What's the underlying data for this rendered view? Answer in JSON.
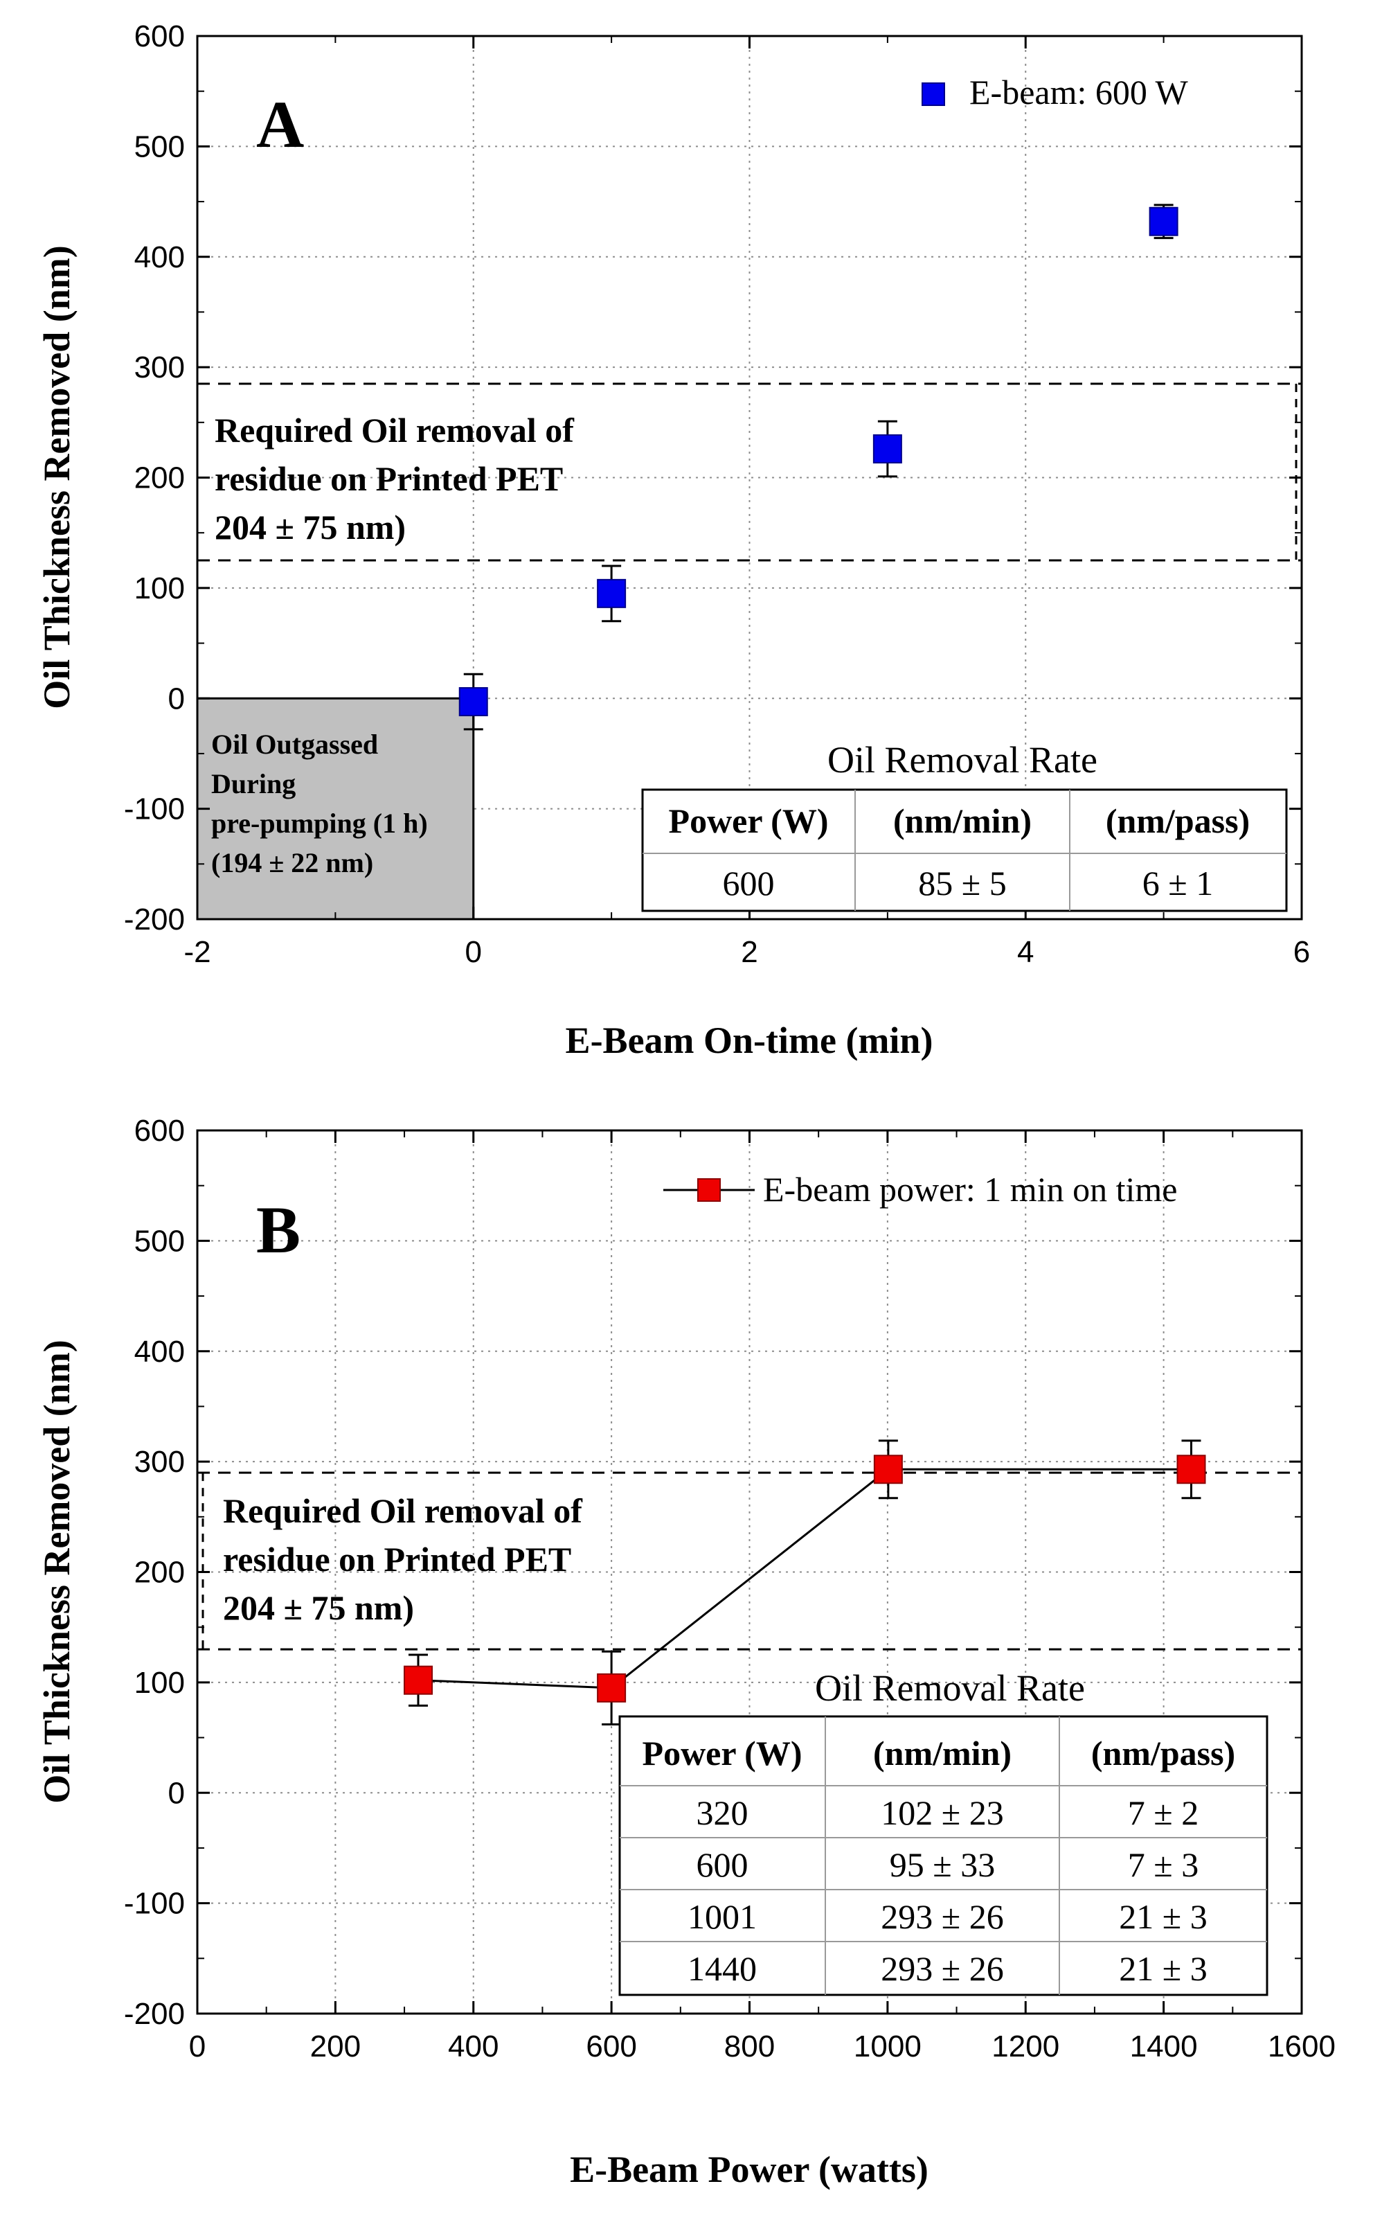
{
  "chart_data": [
    {
      "type": "scatter",
      "panel": "A",
      "xlabel": "E-Beam On-time (min)",
      "ylabel": "Oil Thickness Removed (nm)",
      "xlim": [
        -2,
        6
      ],
      "ylim": [
        -200,
        600
      ],
      "xticks": [
        "-2",
        "0",
        "2",
        "4",
        "6"
      ],
      "yticks": [
        "-200",
        "-100",
        "0",
        "100",
        "200",
        "300",
        "400",
        "500",
        "600"
      ],
      "grid": true,
      "series": [
        {
          "name": "E-beam: 600 W",
          "color": "#0000ee",
          "connected": false,
          "x": [
            0,
            1,
            3,
            5
          ],
          "y": [
            -3,
            95,
            226,
            432
          ],
          "yerr": [
            25,
            25,
            25,
            15
          ]
        }
      ],
      "band": {
        "lower": 125,
        "upper": 285
      },
      "band_text": [
        "Required Oil removal of",
        "residue on Printed PET",
        "204 ± 75 nm)"
      ],
      "outgas_region": {
        "x": [
          -2,
          0
        ],
        "y": [
          -200,
          0
        ]
      },
      "outgas_text": [
        "Oil Outgassed",
        "During",
        "pre-pumping (1 h)",
        "(194 ± 22 nm)"
      ],
      "table": {
        "title": "Oil Removal Rate",
        "headers": [
          "Power (W)",
          "(nm/min)",
          "(nm/pass)"
        ],
        "rows": [
          [
            "600",
            "85 ± 5",
            "6 ± 1"
          ]
        ]
      }
    },
    {
      "type": "line",
      "panel": "B",
      "xlabel": "E-Beam Power (watts)",
      "ylabel": "Oil Thickness Removed (nm)",
      "xlim": [
        0,
        1600
      ],
      "ylim": [
        -200,
        600
      ],
      "xticks": [
        "0",
        "200",
        "400",
        "600",
        "800",
        "1000",
        "1200",
        "1400",
        "1600"
      ],
      "yticks": [
        "-200",
        "-100",
        "0",
        "100",
        "200",
        "300",
        "400",
        "500",
        "600"
      ],
      "grid": true,
      "series": [
        {
          "name": "E-beam power: 1 min on time",
          "color": "#ee0000",
          "connected": true,
          "x": [
            320,
            600,
            1001,
            1440
          ],
          "y": [
            102,
            95,
            293,
            293
          ],
          "yerr": [
            23,
            33,
            26,
            26
          ]
        }
      ],
      "band": {
        "lower": 130,
        "upper": 290
      },
      "band_text": [
        "Required Oil removal of",
        "residue on Printed PET",
        "204 ± 75 nm)"
      ],
      "table": {
        "title": "Oil Removal Rate",
        "headers": [
          "Power (W)",
          "(nm/min)",
          "(nm/pass)"
        ],
        "rows": [
          [
            "320",
            "102 ± 23",
            "7 ± 2"
          ],
          [
            "600",
            "95 ± 33",
            "7 ± 3"
          ],
          [
            "1001",
            "293 ± 26",
            "21 ± 3"
          ],
          [
            "1440",
            "293 ± 26",
            "21 ± 3"
          ]
        ]
      }
    }
  ]
}
